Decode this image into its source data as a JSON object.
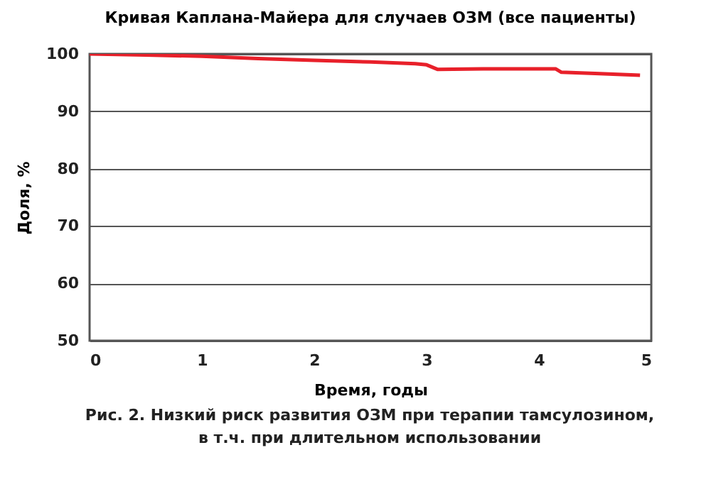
{
  "chart_data": {
    "type": "line",
    "title": "Кривая Каплана-Майера для случаев ОЗМ (все пациенты)",
    "xlabel": "Время, годы",
    "ylabel": "Доля, %",
    "series": [
      {
        "color": "#e8202a",
        "x": [
          0,
          0.5,
          1,
          1.5,
          2,
          2.5,
          2.9,
          3.0,
          3.1,
          3.5,
          4.0,
          4.15,
          4.2,
          4.5,
          4.9
        ],
        "values": [
          100,
          99.8,
          99.6,
          99.2,
          98.9,
          98.6,
          98.3,
          98.1,
          97.3,
          97.4,
          97.4,
          97.4,
          96.8,
          96.6,
          96.3
        ]
      }
    ],
    "xlim": [
      0,
      5
    ],
    "xticks": [
      0,
      1,
      2,
      3,
      4,
      5
    ],
    "ylim": [
      50,
      100
    ],
    "yticks": [
      50,
      60,
      70,
      80,
      90,
      100
    ],
    "grid": "y",
    "marker": "none",
    "line_style": "solid",
    "annotations": [
      "Рис. 2. Низкий риск развития ОЗМ при терапии тамсулозином,\nв т.ч. при длительном использовании"
    ]
  }
}
